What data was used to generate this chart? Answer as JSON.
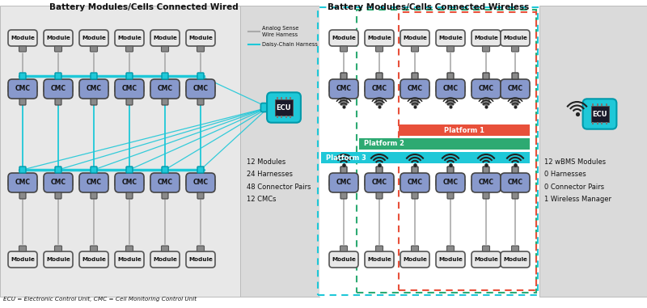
{
  "title_left": "Battery Modules/Cells Connected Wired",
  "title_right": "Battery Modules/Cells Connected Wireless",
  "footnote": "ECU = Electronic Control Unit, CMC = Cell Monitoring Control Unit",
  "wired_stats": "12 Modules\n24 Harnesses\n48 Connector Pairs\n12 CMCs",
  "wireless_stats": "12 wBMS Modules\n0 Harnesses\n0 Connector Pairs\n1 Wireless Manager",
  "platform1_label": "Platform 1",
  "platform2_label": "Platform 2",
  "platform3_label": "Platform 3",
  "platform1_color": "#e8503a",
  "platform2_color": "#2daa72",
  "platform3_color": "#1fc8d8",
  "module_fill": "#e8e8e8",
  "module_stroke": "#555555",
  "cmc_fill": "#8899cc",
  "cmc_fill2": "#aabbdd",
  "cmc_stroke": "#444444",
  "connector_gray": "#8a8a8a",
  "connector_cyan": "#1fc8d8",
  "wire_gray": "#aaaaaa",
  "cyan": "#1fc8d8",
  "cyan_dark": "#0099aa",
  "bg_wired": "#e8e8e8",
  "bg_panel_right": "#e0e0e0",
  "bg_wireless": "#ffffff",
  "dashed_cyan": "#1fc8d8",
  "dashed_red": "#e8503a",
  "dashed_green": "#2daa72",
  "ecu_cyan": "#1fc8d8",
  "legend_gray": "#aaaaaa",
  "text_color": "#111111"
}
